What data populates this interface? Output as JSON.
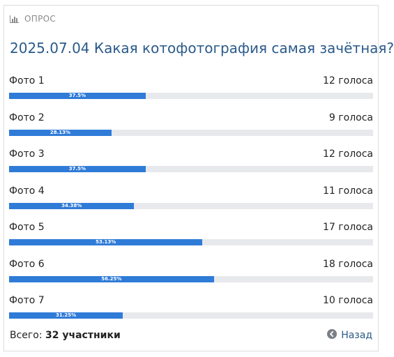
{
  "poll": {
    "header_label": "ОПРОС",
    "title": "2025.07.04 Какая котофотография самая зачётная?",
    "options": [
      {
        "label": "Фото 1",
        "votes": "12 голоса",
        "percent_text": "37.5%",
        "percent": 37.5
      },
      {
        "label": "Фото 2",
        "votes": "9 голоса",
        "percent_text": "28.13%",
        "percent": 28.13
      },
      {
        "label": "Фото 3",
        "votes": "12 голоса",
        "percent_text": "37.5%",
        "percent": 37.5
      },
      {
        "label": "Фото 4",
        "votes": "11 голоса",
        "percent_text": "34.38%",
        "percent": 34.38
      },
      {
        "label": "Фото 5",
        "votes": "17 голоса",
        "percent_text": "53.13%",
        "percent": 53.13
      },
      {
        "label": "Фото 6",
        "votes": "18 голоса",
        "percent_text": "56.25%",
        "percent": 56.25
      },
      {
        "label": "Фото 7",
        "votes": "10 голоса",
        "percent_text": "31.25%",
        "percent": 31.25
      }
    ],
    "total_label": "Всего:",
    "total_value": "32 участники",
    "back_label": "Назад"
  },
  "icons": {
    "header": "bar-chart-icon",
    "back": "arrow-left-circle-icon"
  },
  "colors": {
    "bar_fill": "#2f7bd8",
    "bar_track": "#e7e9ec",
    "title": "#2b5a8a"
  }
}
